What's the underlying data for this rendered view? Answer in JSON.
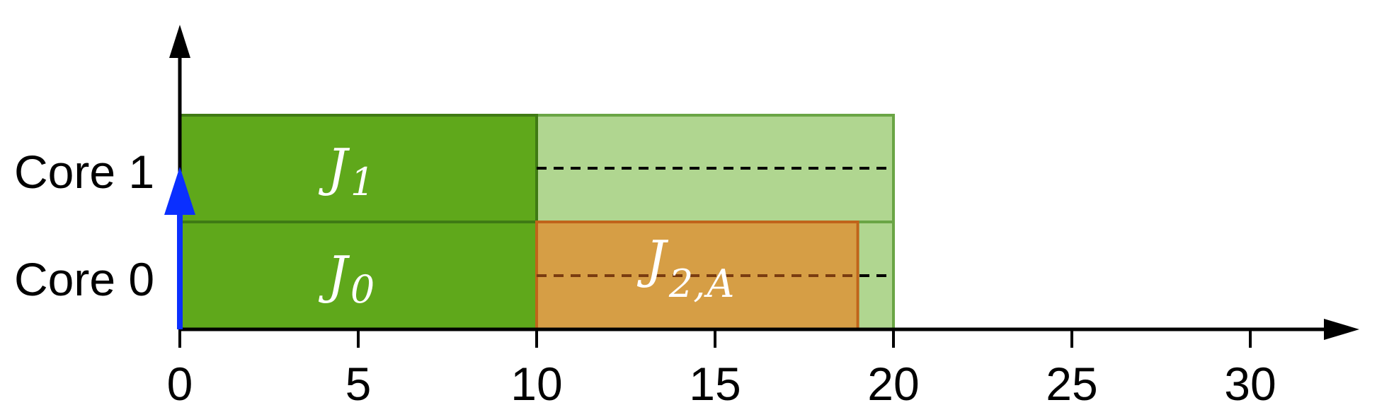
{
  "core_labels": [
    "Core 0",
    "Core 1"
  ],
  "x_ticks": [
    "0",
    "5",
    "10",
    "15",
    "20",
    "25",
    "30"
  ],
  "jobs": [
    {
      "main": "J",
      "sub": "0",
      "core": 0,
      "start": 0,
      "end": 10
    },
    {
      "main": "J",
      "sub": "1",
      "core": 1,
      "start": 0,
      "end": 10
    },
    {
      "main": "J",
      "sub": "2,",
      "sub_italic": "A",
      "core": 0,
      "start": 10,
      "end": 19
    }
  ],
  "background_window": {
    "start": 10,
    "end": 20,
    "cores": [
      0,
      1
    ]
  },
  "release_arrow_time": 0,
  "x_range": [
    0,
    30
  ],
  "colors": {
    "job_green": "#5fa81b",
    "job_green_edge": "#3f7a14",
    "window_green": "#b0d690",
    "job_orange": "#d69e45",
    "job_orange_edge": "#c0641a",
    "release_arrow": "#0a2fff",
    "axis": "#000000"
  }
}
